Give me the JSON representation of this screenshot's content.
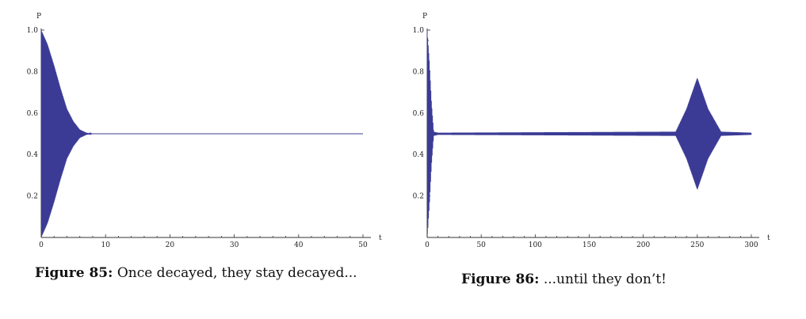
{
  "captions": [
    {
      "number": "Figure 85:",
      "text": "Once decayed, they stay decayed..."
    },
    {
      "number": "Figure 86:",
      "text": "...until they don’t!"
    }
  ],
  "chart_data": [
    {
      "type": "line",
      "xlabel": "t",
      "ylabel": "P",
      "xlim": [
        0,
        50
      ],
      "ylim": [
        0,
        1
      ],
      "xticks": [
        0,
        10,
        20,
        30,
        40,
        50
      ],
      "yticks": [
        0.2,
        0.4,
        0.6,
        0.8,
        1.0
      ],
      "ytick_labels": [
        "0.2",
        "0.4",
        "0.6",
        "0.8",
        "1.0"
      ],
      "line_color": "#3b3b96",
      "series": [
        {
          "description_points": {
            "t": [
              0,
              1,
              2,
              3,
              4,
              5,
              6,
              7,
              8,
              50
            ],
            "envelope_upper": [
              1.0,
              0.93,
              0.83,
              0.72,
              0.62,
              0.56,
              0.52,
              0.505,
              0.5,
              0.5
            ],
            "envelope_lower": [
              0.0,
              0.07,
              0.17,
              0.28,
              0.38,
              0.44,
              0.48,
              0.495,
              0.5,
              0.5
            ]
          }
        }
      ]
    },
    {
      "type": "line",
      "xlabel": "t",
      "ylabel": "P",
      "xlim": [
        0,
        300
      ],
      "ylim": [
        0,
        1
      ],
      "xticks": [
        0,
        50,
        100,
        150,
        200,
        250,
        300
      ],
      "yticks": [
        0.2,
        0.4,
        0.6,
        0.8,
        1.0
      ],
      "ytick_labels": [
        "0.2",
        "0.4",
        "0.6",
        "0.8",
        "1.0"
      ],
      "line_color": "#3b3b96",
      "series": [
        {
          "description_points": {
            "t": [
              0,
              2,
              4,
              6,
              10,
              230,
              240,
              250,
              260,
              272,
              300
            ],
            "envelope_upper": [
              1.0,
              0.85,
              0.65,
              0.51,
              0.505,
              0.51,
              0.62,
              0.77,
              0.62,
              0.51,
              0.505
            ],
            "envelope_lower": [
              0.0,
              0.15,
              0.35,
              0.49,
              0.495,
              0.49,
              0.38,
              0.23,
              0.38,
              0.49,
              0.495
            ]
          }
        }
      ]
    }
  ]
}
